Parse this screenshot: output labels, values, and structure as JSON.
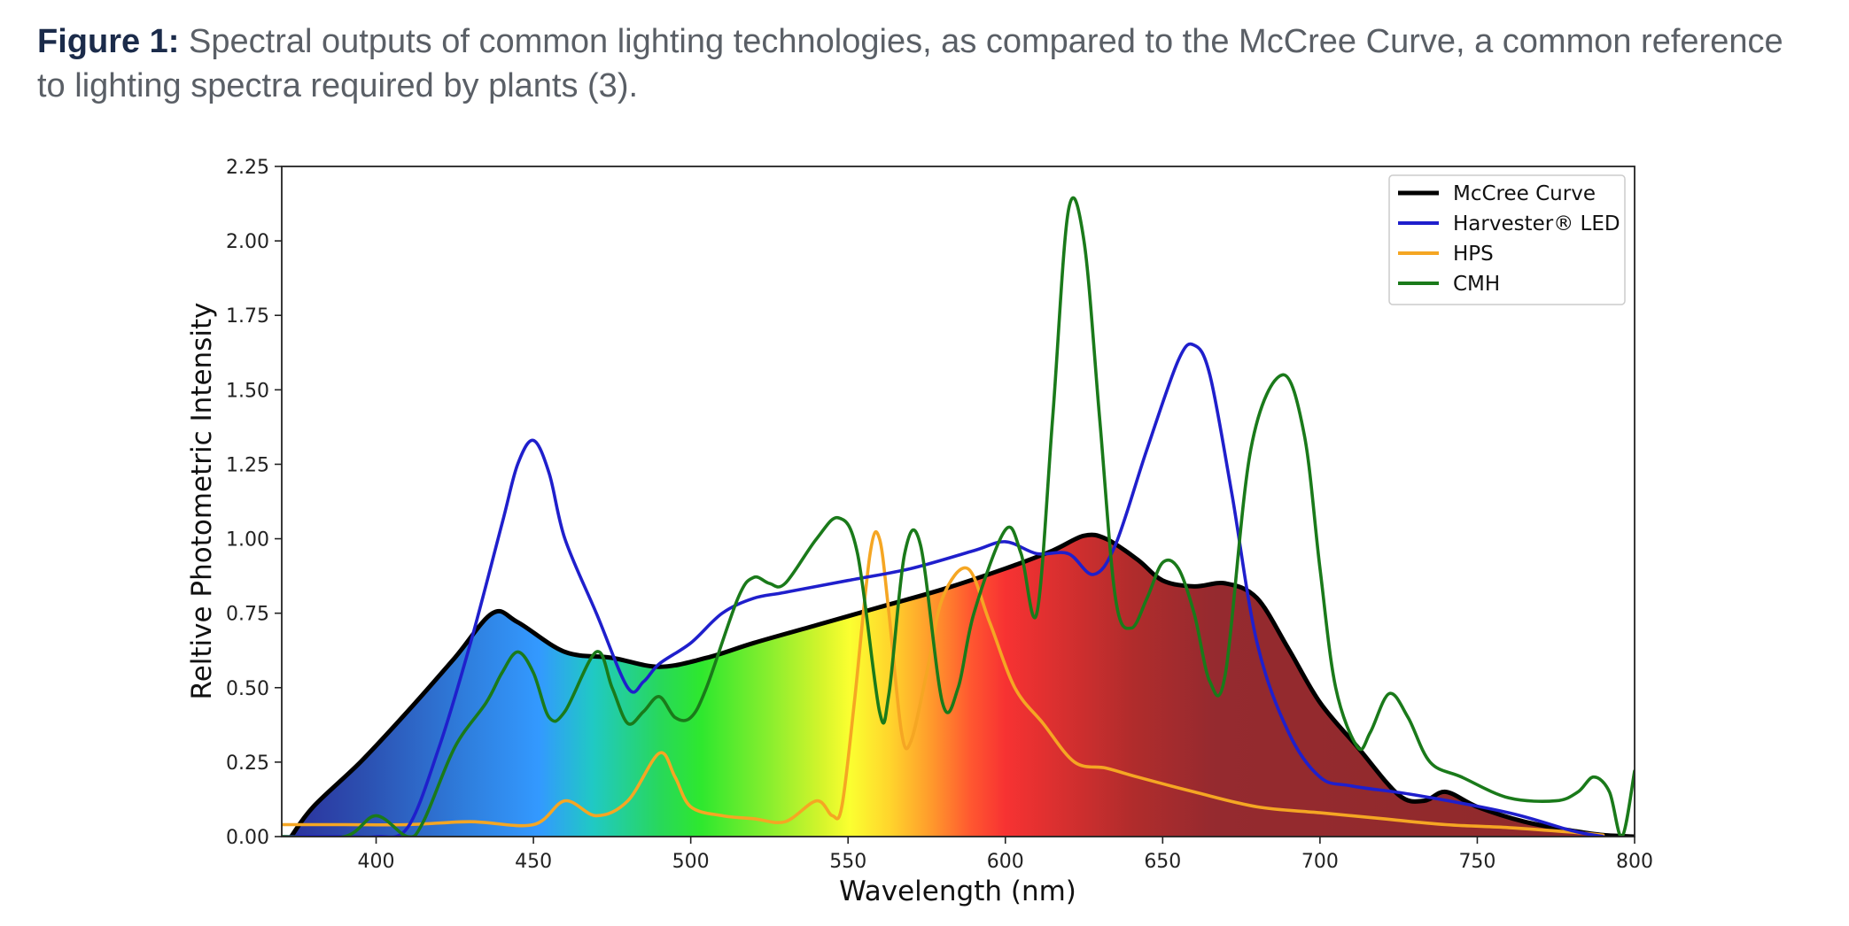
{
  "caption": {
    "lead": "Figure 1:",
    "text": "Spectral outputs of common lighting technologies, as compared to the McCree Curve, a common reference to lighting spectra required by plants (3)."
  },
  "chart_data": {
    "type": "line",
    "title": "",
    "xlabel": "Wavelength (nm)",
    "ylabel": "Reltive Photometric Intensity",
    "xlim": [
      370,
      800
    ],
    "ylim": [
      0,
      2.25
    ],
    "xticks": [
      400,
      450,
      500,
      550,
      600,
      650,
      700,
      750,
      800
    ],
    "yticks": [
      0,
      0.25,
      0.5,
      0.75,
      1.0,
      1.25,
      1.5,
      1.75,
      2.0,
      2.25
    ],
    "xtick_labels": [
      "400",
      "450",
      "500",
      "550",
      "600",
      "650",
      "700",
      "750",
      "800"
    ],
    "ytick_labels": [
      "0.00",
      "0.25",
      "0.50",
      "0.75",
      "1.00",
      "1.25",
      "1.50",
      "1.75",
      "2.00",
      "2.25"
    ],
    "legend_position": "top-right",
    "grid": false,
    "series": [
      {
        "name": "McCree Curve",
        "color": "#000000",
        "filled_with_spectrum": true,
        "x": [
          373,
          380,
          395,
          410,
          425,
          437,
          445,
          460,
          475,
          490,
          505,
          520,
          540,
          560,
          580,
          600,
          615,
          625,
          632,
          642,
          650,
          660,
          670,
          680,
          690,
          700,
          712,
          725,
          733,
          740,
          750,
          765,
          780,
          790,
          800
        ],
        "y": [
          0.0,
          0.1,
          0.25,
          0.42,
          0.6,
          0.75,
          0.72,
          0.62,
          0.6,
          0.57,
          0.6,
          0.65,
          0.71,
          0.77,
          0.83,
          0.9,
          0.96,
          1.01,
          1.0,
          0.93,
          0.86,
          0.84,
          0.85,
          0.8,
          0.63,
          0.45,
          0.3,
          0.14,
          0.12,
          0.15,
          0.1,
          0.05,
          0.02,
          0.005,
          0.0
        ]
      },
      {
        "name": "Harvester® LED",
        "color": "#1f1fcc",
        "x": [
          370,
          390,
          400,
          410,
          420,
          430,
          440,
          445,
          450,
          455,
          460,
          470,
          480,
          485,
          490,
          500,
          510,
          520,
          530,
          550,
          570,
          590,
          600,
          610,
          620,
          628,
          635,
          645,
          655,
          660,
          665,
          672,
          680,
          690,
          700,
          710,
          730,
          760,
          780,
          790
        ],
        "y": [
          0.0,
          0.0,
          0.0,
          0.03,
          0.3,
          0.65,
          1.05,
          1.25,
          1.33,
          1.22,
          1.0,
          0.75,
          0.5,
          0.52,
          0.58,
          0.65,
          0.75,
          0.8,
          0.82,
          0.86,
          0.9,
          0.96,
          0.99,
          0.95,
          0.95,
          0.88,
          0.98,
          1.3,
          1.6,
          1.65,
          1.55,
          1.15,
          0.65,
          0.35,
          0.2,
          0.17,
          0.14,
          0.08,
          0.02,
          0.0
        ]
      },
      {
        "name": "HPS",
        "color": "#f5a623",
        "x": [
          370,
          390,
          410,
          430,
          450,
          460,
          470,
          480,
          490,
          495,
          500,
          510,
          520,
          530,
          540,
          545,
          548,
          552,
          557,
          560,
          563,
          567,
          570,
          575,
          580,
          588,
          595,
          603,
          612,
          622,
          632,
          642,
          660,
          680,
          700,
          720,
          740,
          760,
          780,
          790
        ],
        "y": [
          0.04,
          0.04,
          0.04,
          0.05,
          0.04,
          0.12,
          0.07,
          0.12,
          0.28,
          0.2,
          0.1,
          0.07,
          0.06,
          0.05,
          0.12,
          0.07,
          0.1,
          0.45,
          0.95,
          1.0,
          0.75,
          0.35,
          0.32,
          0.55,
          0.8,
          0.9,
          0.72,
          0.5,
          0.38,
          0.25,
          0.23,
          0.2,
          0.15,
          0.1,
          0.08,
          0.06,
          0.04,
          0.03,
          0.015,
          0.005
        ]
      },
      {
        "name": "CMH",
        "color": "#1a7a1a",
        "x": [
          370,
          390,
          400,
          410,
          415,
          425,
          435,
          440,
          445,
          450,
          455,
          460,
          470,
          475,
          480,
          485,
          490,
          495,
          500,
          505,
          515,
          520,
          525,
          530,
          540,
          547,
          553,
          560,
          563,
          568,
          573,
          580,
          585,
          590,
          600,
          605,
          610,
          615,
          620,
          625,
          630,
          635,
          640,
          645,
          650,
          655,
          660,
          665,
          670,
          678,
          688,
          695,
          700,
          705,
          712,
          716,
          722,
          728,
          735,
          745,
          760,
          775,
          782,
          787,
          792,
          796,
          800
        ],
        "y": [
          0.0,
          0.0,
          0.07,
          0.0,
          0.05,
          0.3,
          0.45,
          0.55,
          0.62,
          0.55,
          0.4,
          0.42,
          0.62,
          0.5,
          0.38,
          0.42,
          0.47,
          0.4,
          0.4,
          0.5,
          0.8,
          0.87,
          0.85,
          0.85,
          1.0,
          1.07,
          0.95,
          0.42,
          0.48,
          0.95,
          0.98,
          0.45,
          0.5,
          0.75,
          1.03,
          0.95,
          0.75,
          1.4,
          2.1,
          2.0,
          1.4,
          0.8,
          0.7,
          0.8,
          0.92,
          0.9,
          0.75,
          0.52,
          0.55,
          1.3,
          1.55,
          1.35,
          0.9,
          0.5,
          0.3,
          0.35,
          0.48,
          0.4,
          0.25,
          0.2,
          0.13,
          0.12,
          0.15,
          0.2,
          0.15,
          0.0,
          0.22
        ]
      }
    ]
  }
}
